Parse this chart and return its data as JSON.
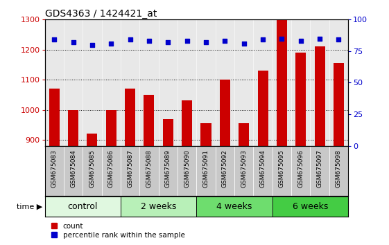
{
  "title": "GDS4363 / 1424421_at",
  "samples": [
    "GSM675083",
    "GSM675084",
    "GSM675085",
    "GSM675086",
    "GSM675087",
    "GSM675088",
    "GSM675089",
    "GSM675090",
    "GSM675091",
    "GSM675092",
    "GSM675093",
    "GSM675094",
    "GSM675095",
    "GSM675096",
    "GSM675097",
    "GSM675098"
  ],
  "counts": [
    1070,
    1000,
    920,
    1000,
    1070,
    1050,
    968,
    1032,
    955,
    1100,
    955,
    1130,
    1300,
    1190,
    1210,
    1155
  ],
  "percentiles": [
    84,
    82,
    80,
    81,
    84,
    83,
    82,
    83,
    82,
    83,
    81,
    84,
    85,
    83,
    85,
    84
  ],
  "groups": [
    {
      "label": "control",
      "start": 0,
      "end": 4
    },
    {
      "label": "2 weeks",
      "start": 4,
      "end": 8
    },
    {
      "label": "4 weeks",
      "start": 8,
      "end": 12
    },
    {
      "label": "6 weeks",
      "start": 12,
      "end": 16
    }
  ],
  "group_colors": [
    "#e0f8e0",
    "#b8f0b8",
    "#6edd6e",
    "#44cc44"
  ],
  "bar_color": "#cc0000",
  "dot_color": "#0000cc",
  "ylim_left": [
    880,
    1300
  ],
  "ylim_right": [
    0,
    100
  ],
  "yticks_left": [
    900,
    1000,
    1100,
    1200,
    1300
  ],
  "yticks_right": [
    0,
    25,
    50,
    75,
    100
  ],
  "plot_bg": "#e8e8e8",
  "label_bg": "#c8c8c8",
  "fig_bg": "#ffffff",
  "title_fontsize": 10,
  "tick_label_fontsize": 6.5,
  "group_label_fontsize": 9,
  "legend_entries": [
    "count",
    "percentile rank within the sample"
  ],
  "bar_width": 0.55
}
